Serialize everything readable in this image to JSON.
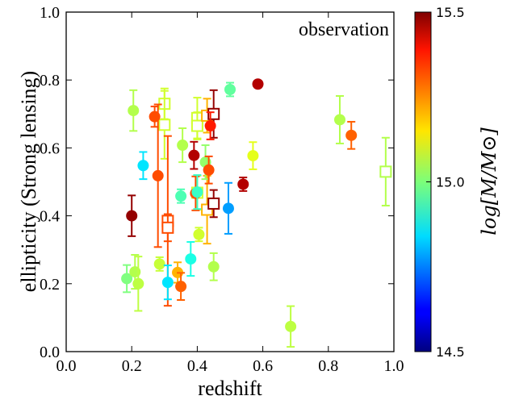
{
  "chart_data": {
    "type": "scatter",
    "title": "",
    "annotation": "observation",
    "xlabel": "redshift",
    "ylabel": "ellipticity (Strong lensing)",
    "xlim": [
      0.0,
      1.0
    ],
    "ylim": [
      0.0,
      1.0
    ],
    "xticks": [
      "0.0",
      "0.2",
      "0.4",
      "0.6",
      "0.8",
      "1.0"
    ],
    "yticks": [
      "0.0",
      "0.2",
      "0.4",
      "0.6",
      "0.8",
      "1.0"
    ],
    "grid": false,
    "colorbar": {
      "label": "log[M/M⊙]",
      "range": [
        14.5,
        15.5
      ],
      "ticks": [
        "14.5",
        "15.0",
        "15.5"
      ],
      "colormap": "jet"
    },
    "circles": [
      {
        "x": 0.2,
        "y": 0.4,
        "err": 0.06,
        "logm": 15.48
      },
      {
        "x": 0.185,
        "y": 0.215,
        "err": 0.04,
        "logm": 15.0
      },
      {
        "x": 0.205,
        "y": 0.71,
        "err": 0.06,
        "logm": 15.05
      },
      {
        "x": 0.21,
        "y": 0.235,
        "err": 0.05,
        "logm": 15.05
      },
      {
        "x": 0.22,
        "y": 0.2,
        "err": 0.08,
        "logm": 15.06
      },
      {
        "x": 0.235,
        "y": 0.548,
        "err": 0.04,
        "logm": 14.85
      },
      {
        "x": 0.27,
        "y": 0.692,
        "err": 0.03,
        "logm": 15.3
      },
      {
        "x": 0.28,
        "y": 0.518,
        "err": 0.21,
        "logm": 15.3
      },
      {
        "x": 0.285,
        "y": 0.258,
        "err": 0.02,
        "logm": 15.07
      },
      {
        "x": 0.31,
        "y": 0.204,
        "err": 0.05,
        "logm": 14.85
      },
      {
        "x": 0.34,
        "y": 0.233,
        "err": 0.03,
        "logm": 15.2
      },
      {
        "x": 0.35,
        "y": 0.458,
        "err": 0.02,
        "logm": 14.95
      },
      {
        "x": 0.35,
        "y": 0.192,
        "err": 0.04,
        "logm": 15.28
      },
      {
        "x": 0.355,
        "y": 0.608,
        "err": 0.05,
        "logm": 15.05
      },
      {
        "x": 0.38,
        "y": 0.273,
        "err": 0.05,
        "logm": 14.9
      },
      {
        "x": 0.39,
        "y": 0.578,
        "err": 0.04,
        "logm": 15.45
      },
      {
        "x": 0.395,
        "y": 0.466,
        "err": 0.05,
        "logm": 15.3
      },
      {
        "x": 0.4,
        "y": 0.47,
        "err": 0.05,
        "logm": 14.93
      },
      {
        "x": 0.405,
        "y": 0.345,
        "err": 0.02,
        "logm": 15.08
      },
      {
        "x": 0.425,
        "y": 0.558,
        "err": 0.05,
        "logm": 15.02
      },
      {
        "x": 0.435,
        "y": 0.535,
        "err": 0.04,
        "logm": 15.3
      },
      {
        "x": 0.44,
        "y": 0.665,
        "err": 0.04,
        "logm": 15.35
      },
      {
        "x": 0.45,
        "y": 0.25,
        "err": 0.04,
        "logm": 15.05
      },
      {
        "x": 0.495,
        "y": 0.422,
        "err": 0.075,
        "logm": 14.78
      },
      {
        "x": 0.5,
        "y": 0.772,
        "err": 0.02,
        "logm": 14.97
      },
      {
        "x": 0.54,
        "y": 0.493,
        "err": 0.02,
        "logm": 15.45
      },
      {
        "x": 0.57,
        "y": 0.577,
        "err": 0.04,
        "logm": 15.1
      },
      {
        "x": 0.585,
        "y": 0.788,
        "err": 0.01,
        "logm": 15.45
      },
      {
        "x": 0.685,
        "y": 0.074,
        "err": 0.06,
        "logm": 15.06
      },
      {
        "x": 0.835,
        "y": 0.683,
        "err": 0.07,
        "logm": 15.05
      },
      {
        "x": 0.87,
        "y": 0.637,
        "err": 0.04,
        "logm": 15.28
      }
    ],
    "squares": [
      {
        "x": 0.3,
        "y": 0.73,
        "err": 0.045,
        "logm": 15.08
      },
      {
        "x": 0.3,
        "y": 0.668,
        "err": 0.1,
        "logm": 15.08
      },
      {
        "x": 0.31,
        "y": 0.385,
        "err": 0.25,
        "logm": 15.3
      },
      {
        "x": 0.31,
        "y": 0.365,
        "err": 0.04,
        "logm": 15.3
      },
      {
        "x": 0.4,
        "y": 0.688,
        "err": 0.06,
        "logm": 15.08
      },
      {
        "x": 0.4,
        "y": 0.665,
        "err": 0.04,
        "logm": 15.08
      },
      {
        "x": 0.4,
        "y": 0.468,
        "err": 0.05,
        "logm": 15.08
      },
      {
        "x": 0.43,
        "y": 0.695,
        "err": 0.05,
        "logm": 15.2
      },
      {
        "x": 0.43,
        "y": 0.418,
        "err": 0.1,
        "logm": 15.2
      },
      {
        "x": 0.45,
        "y": 0.7,
        "err": 0.07,
        "logm": 15.48
      },
      {
        "x": 0.45,
        "y": 0.436,
        "err": 0.04,
        "logm": 15.48
      },
      {
        "x": 0.975,
        "y": 0.53,
        "err": 0.1,
        "logm": 15.05
      }
    ]
  }
}
